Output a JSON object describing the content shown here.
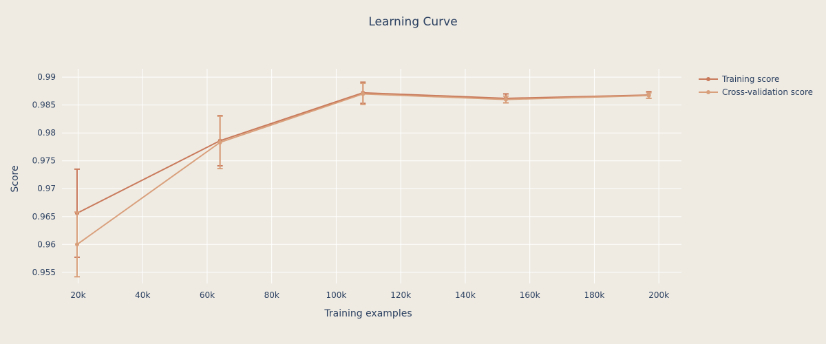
{
  "chart_data": {
    "type": "line",
    "title": "Learning Curve",
    "xlabel": "Training examples",
    "ylabel": "Score",
    "xlim": [
      15000,
      207000
    ],
    "ylim": [
      0.953,
      0.9915
    ],
    "xticks": [
      20000,
      40000,
      60000,
      80000,
      100000,
      120000,
      140000,
      160000,
      180000,
      200000
    ],
    "xtick_labels": [
      "20k",
      "40k",
      "60k",
      "80k",
      "100k",
      "120k",
      "140k",
      "160k",
      "180k",
      "200k"
    ],
    "yticks": [
      0.955,
      0.96,
      0.965,
      0.97,
      0.975,
      0.98,
      0.985,
      0.99
    ],
    "ytick_labels": [
      "0.955",
      "0.96",
      "0.965",
      "0.97",
      "0.975",
      "0.98",
      "0.985",
      "0.99"
    ],
    "grid": true,
    "legend_position": "top-right",
    "x": [
      19690,
      63990,
      108290,
      152590,
      196890
    ],
    "series": [
      {
        "name": "Training score",
        "color": "#c97a5b",
        "values": [
          0.9656,
          0.9786,
          0.9872,
          0.9862,
          0.9868
        ],
        "error": [
          0.0079,
          0.0045,
          0.0019,
          0.0008,
          0.0006
        ]
      },
      {
        "name": "Cross-validation score",
        "color": "#d9a07c",
        "values": [
          0.96,
          0.9783,
          0.987,
          0.986,
          0.9867
        ],
        "error": [
          0.0058,
          0.0047,
          0.0019,
          0.0006,
          0.0005
        ]
      }
    ]
  }
}
